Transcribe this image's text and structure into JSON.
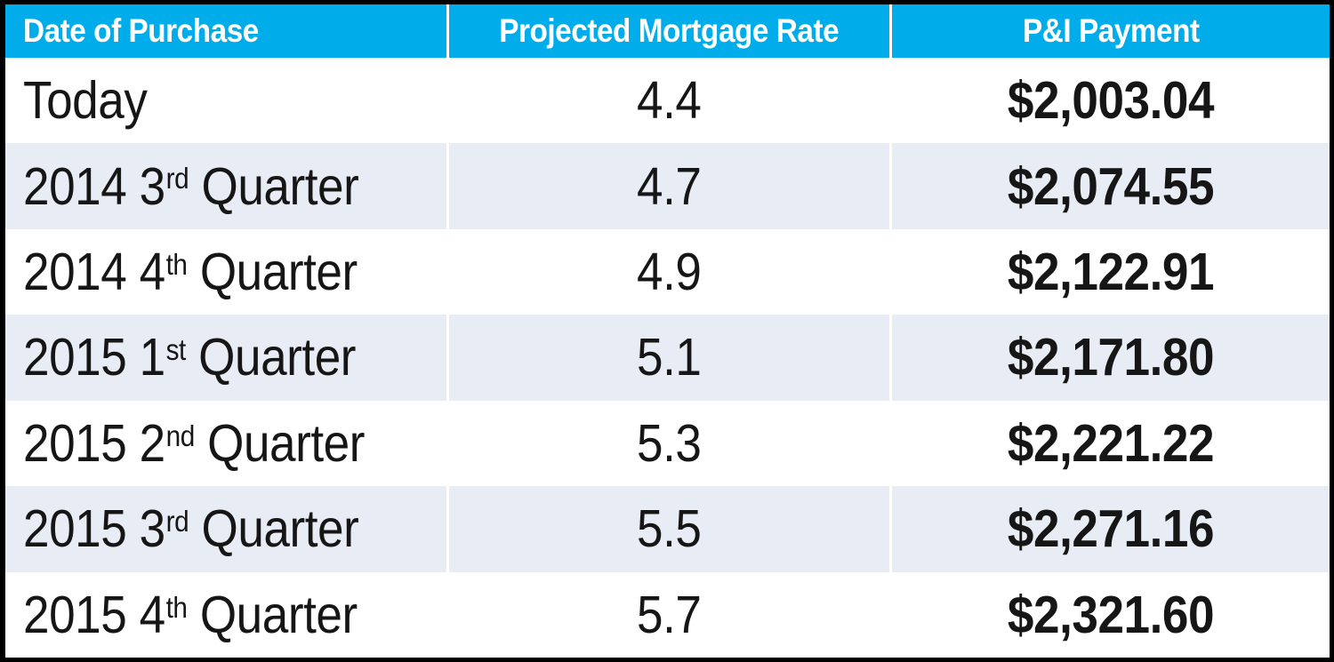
{
  "colors": {
    "header_bg": "#00ACE9",
    "header_text": "#FFFFFF",
    "shaded_row_bg": "#E8ECF4",
    "white_row_bg": "#FFFFFF",
    "body_text": "#161616",
    "outer_border": "#000000"
  },
  "table": {
    "columns": [
      "Date of Purchase",
      "Projected Mortgage Rate",
      "P&I Payment"
    ],
    "rows": [
      {
        "date_prefix": "Today",
        "date_sup": "",
        "date_suffix": "",
        "rate": "4.4",
        "payment": "$2,003.04"
      },
      {
        "date_prefix": "2014 3",
        "date_sup": "rd",
        "date_suffix": " Quarter",
        "rate": "4.7",
        "payment": "$2,074.55"
      },
      {
        "date_prefix": "2014 4",
        "date_sup": "th",
        "date_suffix": " Quarter",
        "rate": "4.9",
        "payment": "$2,122.91"
      },
      {
        "date_prefix": "2015 1",
        "date_sup": "st",
        "date_suffix": " Quarter",
        "rate": "5.1",
        "payment": "$2,171.80"
      },
      {
        "date_prefix": "2015 2",
        "date_sup": "nd",
        "date_suffix": " Quarter",
        "rate": "5.3",
        "payment": "$2,221.22"
      },
      {
        "date_prefix": "2015 3",
        "date_sup": "rd",
        "date_suffix": " Quarter",
        "rate": "5.5",
        "payment": "$2,271.16"
      },
      {
        "date_prefix": "2015 4",
        "date_sup": "th",
        "date_suffix": " Quarter",
        "rate": "5.7",
        "payment": "$2,321.60"
      }
    ]
  },
  "chart_data": {
    "type": "table",
    "columns": [
      "Date of Purchase",
      "Projected Mortgage Rate",
      "P&I Payment"
    ],
    "rows": [
      [
        "Today",
        4.4,
        "$2,003.04"
      ],
      [
        "2014 3rd Quarter",
        4.7,
        "$2,074.55"
      ],
      [
        "2014 4th Quarter",
        4.9,
        "$2,122.91"
      ],
      [
        "2015 1st Quarter",
        5.1,
        "$2,171.80"
      ],
      [
        "2015 2nd Quarter",
        5.3,
        "$2,221.22"
      ],
      [
        "2015 3rd Quarter",
        5.5,
        "$2,271.16"
      ],
      [
        "2015 4th Quarter",
        5.7,
        "$2,321.60"
      ]
    ]
  }
}
